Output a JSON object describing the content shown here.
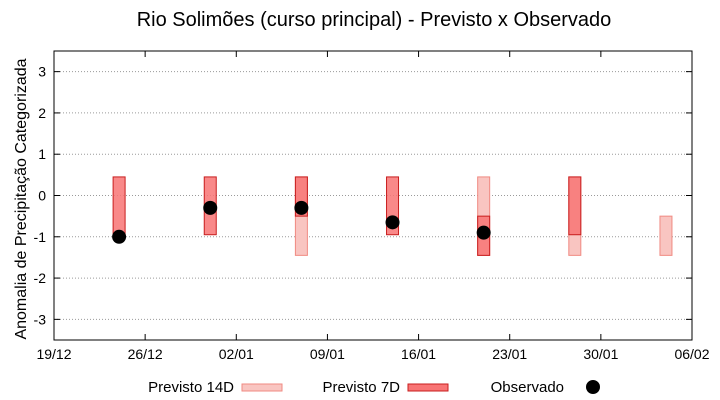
{
  "chart_data": {
    "type": "range-bar",
    "title": "Rio Solimões (curso principal) - Previsto x Observado",
    "xlabel": "",
    "ylabel": "Anomalia de Precipitação Categorizada",
    "ylim": [
      -3.5,
      3.5
    ],
    "yticks": [
      3,
      2,
      1,
      0,
      -1,
      -2,
      -3
    ],
    "ytick_labels": [
      "3",
      "2",
      "1",
      "0",
      "-1",
      "-2",
      "-3"
    ],
    "xdomain": [
      "2023-12-19",
      "2024-02-06"
    ],
    "xticks": [
      {
        "date": "2023-12-19",
        "label": "19/12"
      },
      {
        "date": "2023-12-26",
        "label": "26/12"
      },
      {
        "date": "2024-01-02",
        "label": "02/01"
      },
      {
        "date": "2024-01-09",
        "label": "09/01"
      },
      {
        "date": "2024-01-16",
        "label": "16/01"
      },
      {
        "date": "2024-01-23",
        "label": "23/01"
      },
      {
        "date": "2024-01-30",
        "label": "30/01"
      },
      {
        "date": "2024-02-06",
        "label": "06/02"
      }
    ],
    "grid": true,
    "legend_position": "bottom",
    "colors": {
      "previsto_14d_fill": "#f9c5c1",
      "previsto_14d_stroke": "#f08a82",
      "previsto_7d_fill": "#f87474",
      "previsto_7d_stroke": "#c81e1e",
      "observado": "#000000",
      "grid": "#9a9a9a"
    },
    "series": [
      {
        "name": "Previsto 14D",
        "ranges": [
          {
            "x": "2024-01-07",
            "low": -1.45,
            "high": 0.45
          },
          {
            "x": "2024-01-21",
            "low": -1.45,
            "high": 0.45
          },
          {
            "x": "2024-01-28",
            "low": -1.45,
            "high": 0.45
          },
          {
            "x": "2024-02-04",
            "low": -1.45,
            "high": -0.5
          }
        ]
      },
      {
        "name": "Previsto 7D",
        "ranges": [
          {
            "x": "2023-12-24",
            "low": -1.0,
            "high": 0.45
          },
          {
            "x": "2023-12-31",
            "low": -0.95,
            "high": 0.45
          },
          {
            "x": "2024-01-07",
            "low": -0.5,
            "high": 0.45
          },
          {
            "x": "2024-01-14",
            "low": -0.95,
            "high": 0.45
          },
          {
            "x": "2024-01-21",
            "low": -1.45,
            "high": -0.5
          },
          {
            "x": "2024-01-28",
            "low": -0.95,
            "high": 0.45
          }
        ]
      },
      {
        "name": "Observado",
        "points": [
          {
            "x": "2023-12-24",
            "y": -1.0
          },
          {
            "x": "2023-12-31",
            "y": -0.3
          },
          {
            "x": "2024-01-07",
            "y": -0.3
          },
          {
            "x": "2024-01-14",
            "y": -0.65
          },
          {
            "x": "2024-01-21",
            "y": -0.9
          }
        ]
      }
    ]
  }
}
